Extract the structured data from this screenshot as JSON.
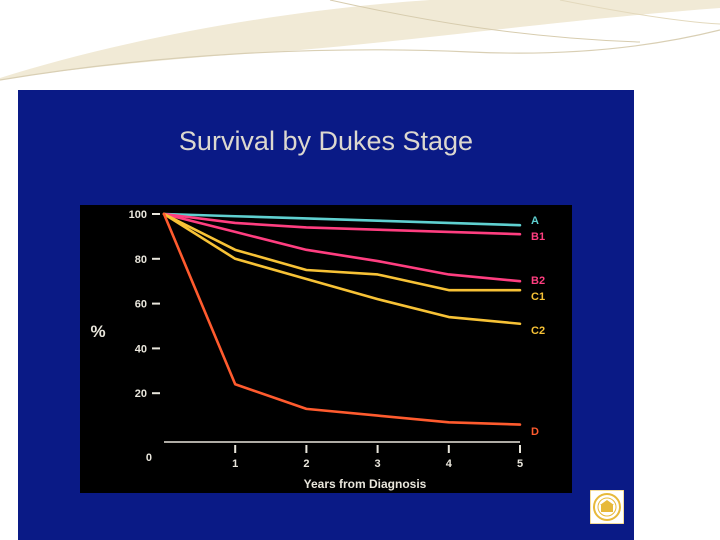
{
  "colors": {
    "slide_bg": "#0a1a86",
    "plot_bg": "#000000",
    "title_color": "#dcd8cf",
    "axis_text": "#e9e6dc",
    "series": {
      "A": "#5fd0d0",
      "B1": "#ff3e80",
      "B2": "#ff3e80",
      "C1": "#f7c236",
      "C2": "#f7c236",
      "D": "#ff5b2e"
    },
    "logo": "#e7b93a"
  },
  "chart_data": {
    "type": "line",
    "title": "Survival by Dukes Stage",
    "xlabel": "Years from Diagnosis",
    "ylabel": "%",
    "x": [
      0,
      1,
      2,
      3,
      4,
      5
    ],
    "x_ticks": [
      "1",
      "2",
      "3",
      "4",
      "5"
    ],
    "y_ticks": [
      "100",
      "80",
      "60",
      "40",
      "20",
      "0"
    ],
    "xlim": [
      0,
      5
    ],
    "ylim": [
      0,
      100
    ],
    "grid": false,
    "legend": "end-of-line labels",
    "series": [
      {
        "name": "A",
        "values": [
          100,
          99,
          98,
          97,
          96,
          95
        ]
      },
      {
        "name": "B1",
        "values": [
          100,
          96,
          94,
          93,
          92,
          91
        ]
      },
      {
        "name": "B2",
        "values": [
          100,
          92,
          84,
          79,
          73,
          70
        ]
      },
      {
        "name": "C1",
        "values": [
          100,
          84,
          75,
          73,
          66,
          66
        ]
      },
      {
        "name": "C2",
        "values": [
          100,
          80,
          71,
          62,
          54,
          51
        ]
      },
      {
        "name": "D",
        "values": [
          100,
          24,
          13,
          10,
          7,
          6
        ]
      }
    ]
  }
}
